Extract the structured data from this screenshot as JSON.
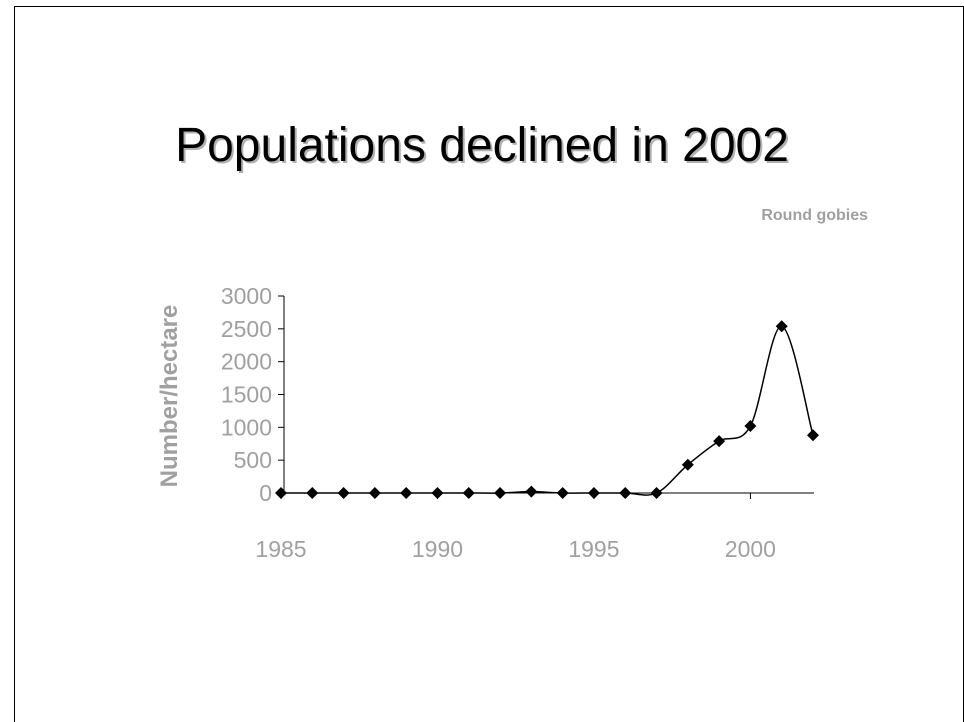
{
  "slide": {
    "title": "Populations declined in 2002"
  },
  "chart_data": {
    "type": "line",
    "title": "Round gobies",
    "xlabel": "",
    "ylabel": "Number/hectare",
    "x": [
      1985,
      1986,
      1987,
      1988,
      1989,
      1990,
      1991,
      1992,
      1993,
      1994,
      1995,
      1996,
      1997,
      1998,
      1999,
      2000,
      2001,
      2002
    ],
    "values": [
      0,
      0,
      0,
      0,
      0,
      0,
      0,
      0,
      20,
      0,
      0,
      0,
      0,
      430,
      790,
      1020,
      2540,
      880
    ],
    "xticks": [
      "1985",
      "1990",
      "1995",
      "2000"
    ],
    "yticks": [
      "0",
      "500",
      "1000",
      "1500",
      "2000",
      "2500",
      "3000"
    ],
    "ylim": [
      0,
      3000
    ],
    "xlim": [
      1985,
      2002
    ],
    "marker": "diamond",
    "smoothed": true,
    "line_color": "#000000",
    "text_color": "#a0a0a0",
    "grid": false
  }
}
